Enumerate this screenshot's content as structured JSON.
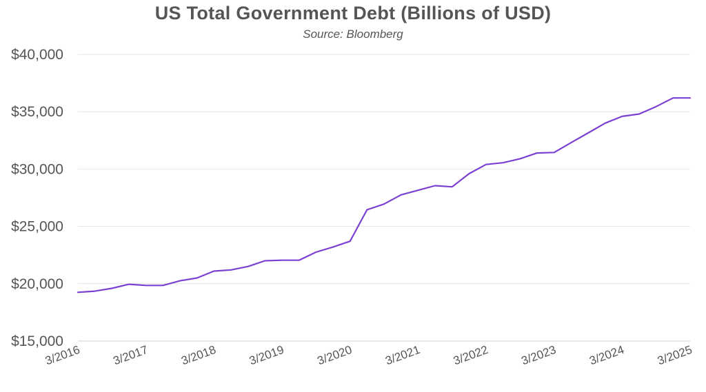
{
  "chart_data": {
    "type": "line",
    "title": "US Total Government Debt (Billions of USD)",
    "subtitle": "Source: Bloomberg",
    "xlabel": "",
    "ylabel": "",
    "ylim": [
      15000,
      40000
    ],
    "yticks": [
      15000,
      20000,
      25000,
      30000,
      35000,
      40000
    ],
    "ytick_labels": [
      "$15,000",
      "$20,000",
      "$25,000",
      "$30,000",
      "$35,000",
      "$40,000"
    ],
    "xtick_labels": [
      "3/2016",
      "3/2017",
      "3/2018",
      "3/2019",
      "3/2020",
      "3/2021",
      "3/2022",
      "3/2023",
      "3/2024",
      "3/2025"
    ],
    "grid": true,
    "line_color": "#7b3fd1",
    "series": [
      {
        "x": [
          "2016-03",
          "2016-06",
          "2016-09",
          "2016-12",
          "2017-03",
          "2017-06",
          "2017-09",
          "2017-12",
          "2018-03",
          "2018-06",
          "2018-09",
          "2018-12",
          "2019-03",
          "2019-06",
          "2019-09",
          "2019-12",
          "2020-03",
          "2020-06",
          "2020-09",
          "2020-12",
          "2021-03",
          "2021-06",
          "2021-09",
          "2021-12",
          "2022-03",
          "2022-06",
          "2022-09",
          "2022-12",
          "2023-03",
          "2023-06",
          "2023-09",
          "2023-12",
          "2024-03",
          "2024-06",
          "2024-09",
          "2024-12",
          "2025-03"
        ],
        "values": [
          19250,
          19350,
          19600,
          19950,
          19850,
          19850,
          20250,
          20500,
          21100,
          21200,
          21500,
          22000,
          22050,
          22050,
          22750,
          23200,
          23700,
          26450,
          26950,
          27750,
          28150,
          28550,
          28450,
          29600,
          30400,
          30550,
          30900,
          31400,
          31450,
          32300,
          33150,
          34000,
          34600,
          34800,
          35450,
          36200,
          36200
        ]
      }
    ]
  }
}
